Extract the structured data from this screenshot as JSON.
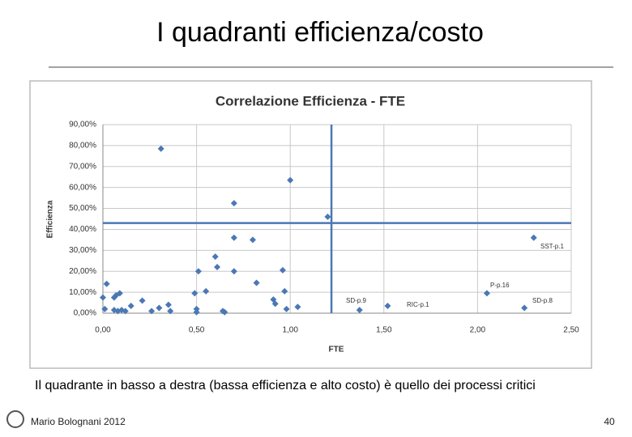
{
  "slide": {
    "title": "I quadranti efficienza/costo",
    "caption": "Il quadrante in basso a destra (bassa efficienza e alto costo) è quello dei processi critici",
    "footer": "Mario Bolognani 2012",
    "page": 40
  },
  "chart_data": {
    "type": "scatter",
    "title": "Correlazione Efficienza - FTE",
    "x_label": "FTE",
    "y_label": "Efficienza",
    "color": "#4a78b5",
    "grid": true,
    "x": [
      0.0,
      0.02,
      0.01,
      0.06,
      0.07,
      0.09,
      0.06,
      0.08,
      0.1,
      0.12,
      0.15,
      0.21,
      0.26,
      0.3,
      0.31,
      0.35,
      0.36,
      0.49,
      0.5,
      0.5,
      0.51,
      0.55,
      0.6,
      0.61,
      0.64,
      0.65,
      0.7,
      0.7,
      0.7,
      0.8,
      0.82,
      0.91,
      0.92,
      0.96,
      0.97,
      0.98,
      1.0,
      1.04,
      1.2,
      1.37,
      1.52,
      2.05,
      2.25,
      2.3
    ],
    "values": [
      7.5,
      14,
      2,
      7.5,
      8.5,
      9.5,
      1.5,
      1,
      1.5,
      1,
      3.5,
      6,
      1,
      2.5,
      78.5,
      4,
      1,
      9.5,
      2,
      0.5,
      20,
      10.5,
      27,
      22,
      1,
      0.5,
      52.5,
      36,
      20,
      35,
      14.5,
      6.5,
      4.5,
      20.5,
      10.5,
      2,
      63.5,
      3,
      46,
      1.5,
      3.5,
      9.5,
      2.5,
      36
    ],
    "xlim": [
      0,
      2.5
    ],
    "xticks": [
      {
        "value": 0,
        "label": "0,00"
      },
      {
        "value": 0.5,
        "label": "0,50"
      },
      {
        "value": 1,
        "label": "1,00"
      },
      {
        "value": 1.5,
        "label": "1,50"
      },
      {
        "value": 2,
        "label": "2,00"
      },
      {
        "value": 2.5,
        "label": "2,50"
      }
    ],
    "ylim": [
      0,
      90
    ],
    "yticks": [
      {
        "value": 0,
        "label": "0,00%"
      },
      {
        "value": 10,
        "label": "10,00%"
      },
      {
        "value": 20,
        "label": "20,00%"
      },
      {
        "value": 30,
        "label": "30,00%"
      },
      {
        "value": 40,
        "label": "40,00%"
      },
      {
        "value": 50,
        "label": "50,00%"
      },
      {
        "value": 60,
        "label": "60,00%"
      },
      {
        "value": 70,
        "label": "70,00%"
      },
      {
        "value": 80,
        "label": "80,00%"
      },
      {
        "value": 90,
        "label": "90,00%"
      }
    ],
    "reference_lines": {
      "x": 1.22,
      "y": 43
    },
    "annotations": [
      "SST-p.1",
      "P-p.16",
      "SD-p.8",
      "SD-p.9",
      "RIC-p.1"
    ]
  }
}
